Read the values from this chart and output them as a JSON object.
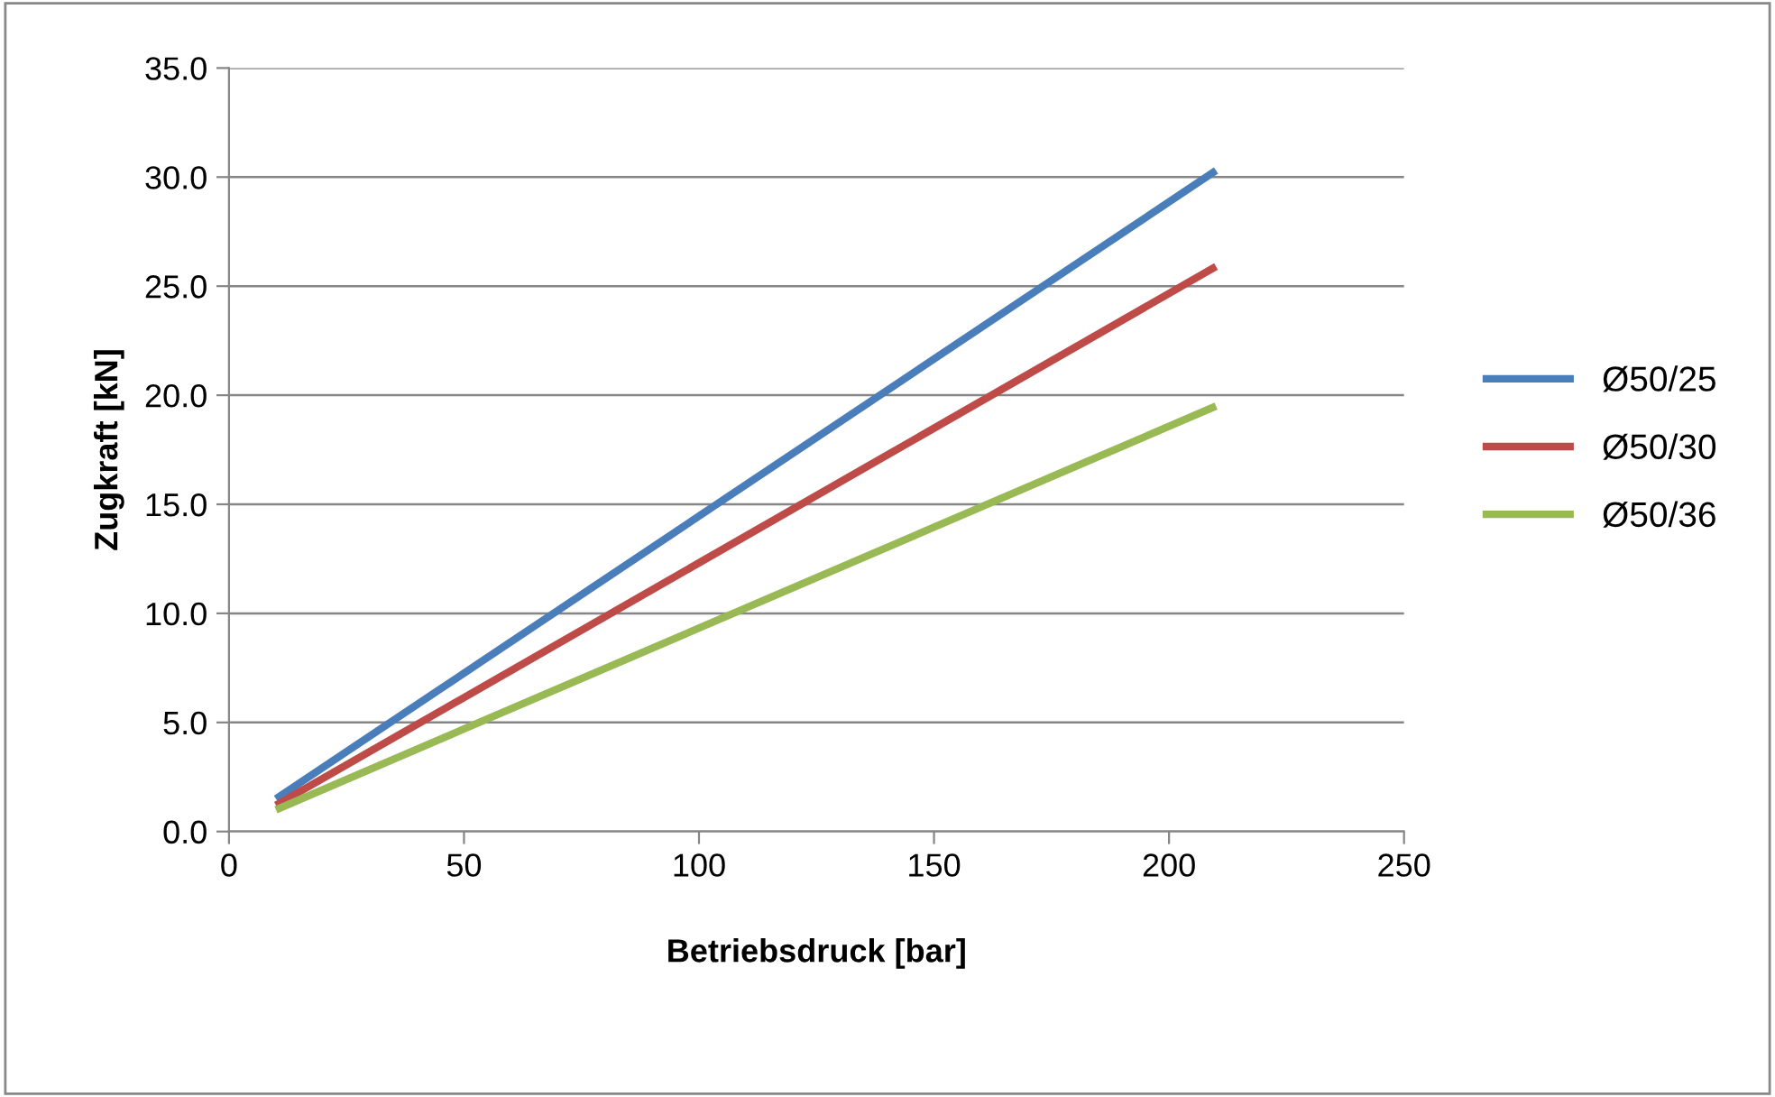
{
  "chart_data": {
    "type": "line",
    "xlabel": "Betriebsdruck [bar]",
    "ylabel": "Zugkraft [kN]",
    "x": [
      10,
      210
    ],
    "series": [
      {
        "name": "Ø50/25",
        "color": "#4a7ebb",
        "values": [
          1.5,
          30.3
        ]
      },
      {
        "name": "Ø50/30",
        "color": "#be4b48",
        "values": [
          1.2,
          25.9
        ]
      },
      {
        "name": "Ø50/36",
        "color": "#98b954",
        "values": [
          1.0,
          19.5
        ]
      }
    ],
    "xlim": [
      0,
      250
    ],
    "xticks": [
      0,
      50,
      100,
      150,
      200,
      250
    ],
    "ylim": [
      0,
      35
    ],
    "yticks": [
      {
        "value": 0,
        "label": "0.0"
      },
      {
        "value": 5,
        "label": "5.0"
      },
      {
        "value": 10,
        "label": "10.0"
      },
      {
        "value": 15,
        "label": "15.0"
      },
      {
        "value": 20,
        "label": "20.0"
      },
      {
        "value": 25,
        "label": "25.0"
      },
      {
        "value": 30,
        "label": "30.0"
      },
      {
        "value": 35,
        "label": "35.0"
      }
    ],
    "grid": "y",
    "legend": "right",
    "marker": "none",
    "line_style": "solid"
  }
}
